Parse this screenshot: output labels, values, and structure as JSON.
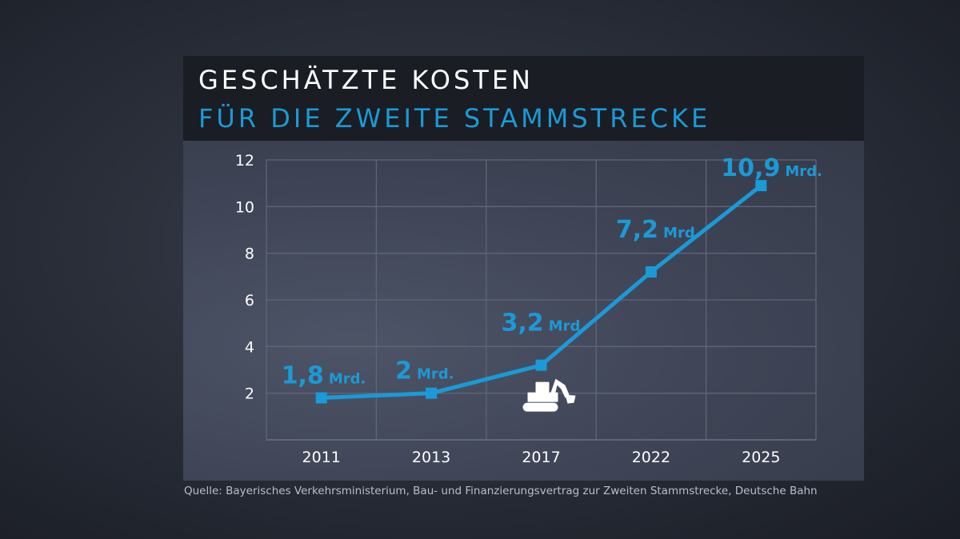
{
  "header": {
    "title_line1": "GESCHÄTZTE KOSTEN",
    "title_line2": "FÜR DIE ZWEITE STAMMSTRECKE"
  },
  "source": "Quelle: Bayerisches Verkehrsministerium, Bau- und Finanzierungsvertrag zur Zweiten Stammstrecke, Deutsche Bahn",
  "colors": {
    "accent": "#1a9ad6",
    "header_bg": "#1a1d24",
    "panel_bg": "#3e4455",
    "text": "#ffffff"
  },
  "icons": [
    "excavator-icon"
  ],
  "chart_data": {
    "type": "line",
    "title": "GESCHÄTZTE KOSTEN FÜR DIE ZWEITE STAMMSTRECKE",
    "xlabel": "",
    "ylabel": "",
    "categories": [
      "2011",
      "2013",
      "2017",
      "2022",
      "2025"
    ],
    "series": [
      {
        "values": [
          1.8,
          2,
          3.2,
          7.2,
          10.9
        ],
        "labels": [
          "1,8",
          "2",
          "3,2",
          "7,2",
          "10,9"
        ]
      }
    ],
    "unit_label": "Mrd.",
    "ylim": [
      0,
      12
    ],
    "yticks": [
      2,
      4,
      6,
      8,
      10,
      12
    ],
    "grid": true,
    "legend": "none",
    "annotation_icon_at": "2017"
  }
}
